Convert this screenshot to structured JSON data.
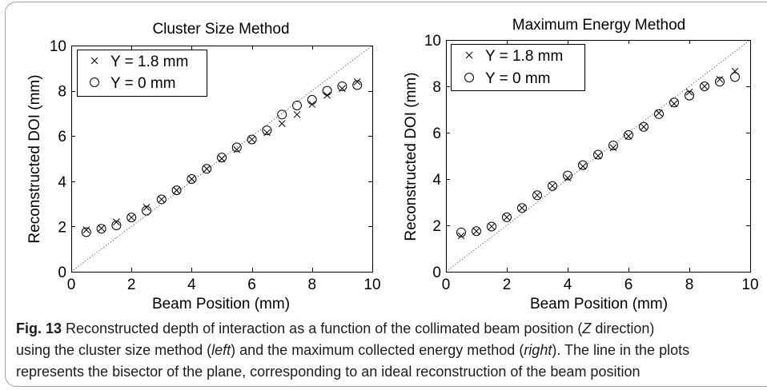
{
  "chart_data": [
    {
      "type": "scatter",
      "title": "Cluster Size Method",
      "xlabel": "Beam Position (mm)",
      "ylabel": "Reconstructed DOI (mm)",
      "xlim": [
        0,
        10
      ],
      "ylim": [
        0,
        10
      ],
      "xticks": [
        0,
        2,
        4,
        6,
        8,
        10
      ],
      "yticks": [
        0,
        2,
        4,
        6,
        8,
        10
      ],
      "grid": false,
      "legend_position": "top-left",
      "reference_line": {
        "x": [
          0,
          10
        ],
        "y": [
          0,
          10
        ],
        "style": "dotted"
      },
      "x": [
        0.5,
        1,
        1.5,
        2,
        2.5,
        3,
        3.5,
        4,
        4.5,
        5,
        5.5,
        6,
        6.5,
        7,
        7.5,
        8,
        8.5,
        9,
        9.5
      ],
      "series": [
        {
          "name": "Y = 1.8 mm",
          "marker": "x",
          "color": "#000000",
          "values": [
            1.85,
            1.92,
            2.2,
            2.4,
            2.85,
            3.2,
            3.6,
            4.1,
            4.55,
            5.0,
            5.4,
            5.85,
            6.15,
            6.55,
            6.95,
            7.4,
            7.8,
            8.1,
            8.4
          ]
        },
        {
          "name": "Y = 0 mm",
          "marker": "o",
          "color": "#000000",
          "values": [
            1.75,
            1.9,
            2.05,
            2.4,
            2.7,
            3.2,
            3.6,
            4.1,
            4.55,
            5.05,
            5.5,
            5.85,
            6.25,
            6.95,
            7.35,
            7.6,
            8.0,
            8.2,
            8.25
          ]
        }
      ]
    },
    {
      "type": "scatter",
      "title": "Maximum Energy Method",
      "xlabel": "Beam Position (mm)",
      "ylabel": "Reconstructed DOI (mm)",
      "xlim": [
        0,
        10
      ],
      "ylim": [
        0,
        10
      ],
      "xticks": [
        0,
        2,
        4,
        6,
        8,
        10
      ],
      "yticks": [
        0,
        2,
        4,
        6,
        8,
        10
      ],
      "grid": false,
      "legend_position": "top-left",
      "reference_line": {
        "x": [
          0,
          10
        ],
        "y": [
          0,
          10
        ],
        "style": "dotted"
      },
      "x": [
        0.5,
        1,
        1.5,
        2,
        2.5,
        3,
        3.5,
        4,
        4.5,
        5,
        5.5,
        6,
        6.5,
        7,
        7.5,
        8,
        8.5,
        9,
        9.5
      ],
      "series": [
        {
          "name": "Y = 1.8 mm",
          "marker": "x",
          "color": "#000000",
          "values": [
            1.55,
            1.75,
            1.95,
            2.35,
            2.75,
            3.3,
            3.7,
            4.05,
            4.55,
            5.0,
            5.35,
            5.85,
            6.25,
            6.85,
            7.25,
            7.75,
            8.0,
            8.3,
            8.65
          ]
        },
        {
          "name": "Y = 0 mm",
          "marker": "o",
          "color": "#000000",
          "values": [
            1.7,
            1.75,
            1.95,
            2.35,
            2.75,
            3.3,
            3.7,
            4.15,
            4.6,
            5.05,
            5.45,
            5.9,
            6.25,
            6.8,
            7.3,
            7.6,
            8.0,
            8.2,
            8.4
          ]
        }
      ]
    }
  ],
  "caption": {
    "label": "Fig. 13",
    "seg1": " Reconstructed depth of interaction as a function of the collimated beam position (",
    "it1": "Z",
    "seg2": " direction)",
    "seg3": "using the cluster size method (",
    "it2": "left",
    "seg4": ") and the maximum collected energy method (",
    "it3": "right",
    "seg5": "). The line in the plots",
    "seg6": "represents the bisector of the plane, corresponding to an ideal reconstruction of the beam position"
  }
}
